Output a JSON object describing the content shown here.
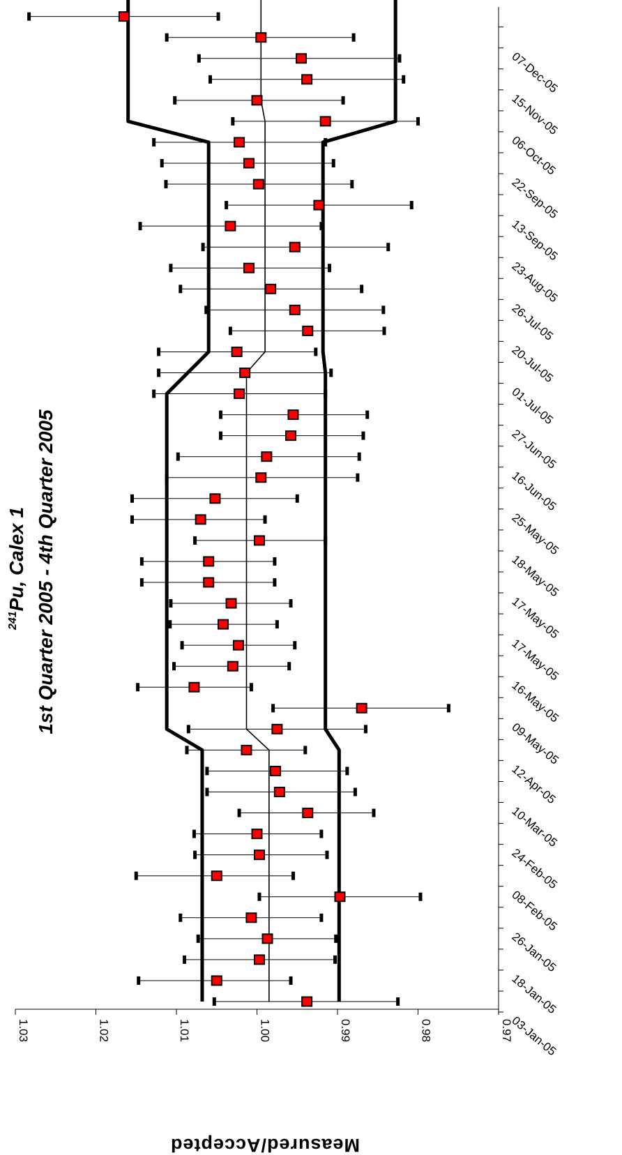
{
  "chart_data": {
    "type": "scatter",
    "title_superscript": "241",
    "title_line1": "Pu, Calex 1",
    "title_line2": "1st Quarter 2005 - 4th Quarter 2005",
    "ylabel": "Measured/Accepted",
    "xlabel": "",
    "ylim": [
      0.97,
      1.03
    ],
    "yticks": [
      "0.97",
      "0.98",
      "0.99",
      "1.00",
      "1.01",
      "1.02",
      "1.03"
    ],
    "x_tick_labels": [
      "03-Jan-05",
      "18-Jan-05",
      "26-Jan-05",
      "08-Feb-05",
      "24-Feb-05",
      "10-Mar-05",
      "12-Apr-05",
      "09-May-05",
      "16-May-05",
      "17-May-05",
      "17-May-05",
      "18-May-05",
      "25-May-05",
      "16-Jun-05",
      "27-Jun-05",
      "01-Jul-05",
      "20-Jul-05",
      "26-Jul-05",
      "23-Aug-05",
      "13-Sep-05",
      "22-Sep-05",
      "06-Oct-05",
      "15-Nov-05",
      "07-Dec-05"
    ],
    "points": [
      {
        "y": 0.9938,
        "lo": 0.9825,
        "hi": 1.0053
      },
      {
        "y": 1.005,
        "lo": 0.9958,
        "hi": 1.0147
      },
      {
        "y": 0.9997,
        "lo": 0.9903,
        "hi": 1.009
      },
      {
        "y": 0.9987,
        "lo": 0.9902,
        "hi": 1.0073
      },
      {
        "y": 1.0007,
        "lo": 0.992,
        "hi": 1.0095
      },
      {
        "y": 0.9897,
        "lo": 0.9797,
        "hi": 0.9997
      },
      {
        "y": 1.005,
        "lo": 0.9955,
        "hi": 1.015
      },
      {
        "y": 0.9997,
        "lo": 0.9913,
        "hi": 1.0077
      },
      {
        "y": 1.0,
        "lo": 0.992,
        "hi": 1.0078
      },
      {
        "y": 0.9937,
        "lo": 0.9855,
        "hi": 1.0022
      },
      {
        "y": 0.9972,
        "lo": 0.9878,
        "hi": 1.0062
      },
      {
        "y": 0.9977,
        "lo": 0.9888,
        "hi": 1.0062
      },
      {
        "y": 1.0013,
        "lo": 0.994,
        "hi": 1.0087
      },
      {
        "y": 0.9975,
        "lo": 0.9865,
        "hi": 1.0085
      },
      {
        "y": 0.987,
        "lo": 0.9762,
        "hi": 0.998
      },
      {
        "y": 1.0078,
        "lo": 1.0007,
        "hi": 1.0148
      },
      {
        "y": 1.003,
        "lo": 0.996,
        "hi": 1.0103
      },
      {
        "y": 1.0023,
        "lo": 0.9953,
        "hi": 1.0093
      },
      {
        "y": 1.0042,
        "lo": 0.9975,
        "hi": 1.0108
      },
      {
        "y": 1.0032,
        "lo": 0.9958,
        "hi": 1.0107
      },
      {
        "y": 1.006,
        "lo": 0.9978,
        "hi": 1.0143
      },
      {
        "y": 1.006,
        "lo": 0.9978,
        "hi": 1.0143
      },
      {
        "y": 0.9997,
        "lo": 0.9915,
        "hi": 1.0077
      },
      {
        "y": 1.007,
        "lo": 0.999,
        "hi": 1.0155
      },
      {
        "y": 1.0052,
        "lo": 0.995,
        "hi": 1.0155
      },
      {
        "y": 0.9995,
        "lo": 0.9875,
        "hi": 1.0112
      },
      {
        "y": 0.9988,
        "lo": 0.9873,
        "hi": 1.0098
      },
      {
        "y": 0.9958,
        "lo": 0.9868,
        "hi": 1.0045
      },
      {
        "y": 0.9955,
        "lo": 0.9863,
        "hi": 1.0045
      },
      {
        "y": 1.0022,
        "lo": 0.9915,
        "hi": 1.0128
      },
      {
        "y": 1.0015,
        "lo": 0.9908,
        "hi": 1.0122
      },
      {
        "y": 1.0025,
        "lo": 0.9927,
        "hi": 1.0122
      },
      {
        "y": 0.9937,
        "lo": 0.9842,
        "hi": 1.0033
      },
      {
        "y": 0.9953,
        "lo": 0.9843,
        "hi": 1.0063
      },
      {
        "y": 0.9983,
        "lo": 0.987,
        "hi": 1.0095
      },
      {
        "y": 1.001,
        "lo": 0.991,
        "hi": 1.0107
      },
      {
        "y": 0.9953,
        "lo": 0.9837,
        "hi": 1.0067
      },
      {
        "y": 1.0033,
        "lo": 0.992,
        "hi": 1.0145
      },
      {
        "y": 0.9923,
        "lo": 0.9808,
        "hi": 1.0038
      },
      {
        "y": 0.9998,
        "lo": 0.9882,
        "hi": 1.0113
      },
      {
        "y": 1.001,
        "lo": 0.9905,
        "hi": 1.0118
      },
      {
        "y": 1.0022,
        "lo": 0.9915,
        "hi": 1.0128
      },
      {
        "y": 0.9915,
        "lo": 0.98,
        "hi": 1.003
      },
      {
        "y": 1.0,
        "lo": 0.9893,
        "hi": 1.0102
      },
      {
        "y": 0.9938,
        "lo": 0.9818,
        "hi": 1.0058
      },
      {
        "y": 0.9945,
        "lo": 0.9823,
        "hi": 1.0072
      },
      {
        "y": 0.9995,
        "lo": 0.988,
        "hi": 1.0112
      },
      {
        "y": 1.0165,
        "lo": 1.0048,
        "hi": 1.0283
      }
    ],
    "center_line": [
      {
        "i": 0,
        "y": 0.9985
      },
      {
        "i": 12,
        "y": 0.9985
      },
      {
        "i": 13,
        "y": 1.0013
      },
      {
        "i": 30,
        "y": 1.0013
      },
      {
        "i": 31,
        "y": 0.999
      },
      {
        "i": 42,
        "y": 0.999
      },
      {
        "i": 43,
        "y": 0.9995
      },
      {
        "i": 48,
        "y": 0.9995
      }
    ],
    "upper_limit": [
      {
        "i": 0,
        "y": 1.0068
      },
      {
        "i": 12,
        "y": 1.0068
      },
      {
        "i": 13,
        "y": 1.0112
      },
      {
        "i": 29,
        "y": 1.0112
      },
      {
        "i": 31,
        "y": 1.006
      },
      {
        "i": 41,
        "y": 1.006
      },
      {
        "i": 42,
        "y": 1.016
      },
      {
        "i": 48,
        "y": 1.016
      }
    ],
    "lower_limit": [
      {
        "i": 0,
        "y": 0.9898
      },
      {
        "i": 12,
        "y": 0.9898
      },
      {
        "i": 13,
        "y": 0.9915
      },
      {
        "i": 30,
        "y": 0.9915
      },
      {
        "i": 31,
        "y": 0.9918
      },
      {
        "i": 41,
        "y": 0.9918
      },
      {
        "i": 42,
        "y": 0.9828
      },
      {
        "i": 48,
        "y": 0.9828
      }
    ],
    "grid": false,
    "legend": "none",
    "marker_color": "#ff0000",
    "marker_edge_color": "#000000",
    "line_color": "#000000"
  }
}
